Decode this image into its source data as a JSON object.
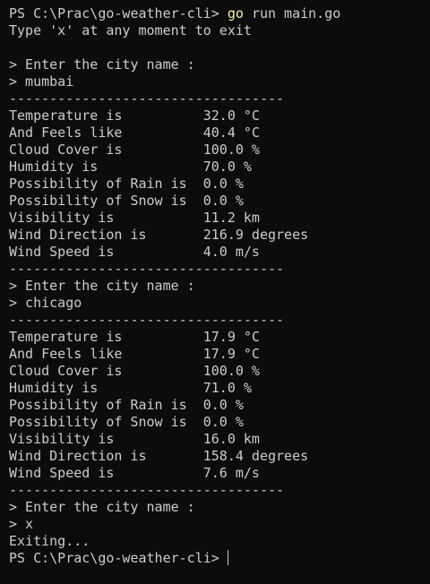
{
  "header": {
    "prompt": "PS C:\\Prac\\go-weather-cli>",
    "command": "go",
    "args": "run main.go",
    "notice": "Type 'x' at any moment to exit"
  },
  "sessions": [
    {
      "ask": "> Enter the city name :",
      "input": "> mumbai",
      "divider": "----------------------------------",
      "rows": [
        {
          "label": "Temperature is",
          "value": "32.0 °C"
        },
        {
          "label": "And Feels like",
          "value": "40.4 °C"
        },
        {
          "label": "Cloud Cover is",
          "value": "100.0 %"
        },
        {
          "label": "Humidity is",
          "value": "70.0 %"
        },
        {
          "label": "Possibility of Rain is",
          "value": "0.0 %"
        },
        {
          "label": "Possibility of Snow is",
          "value": "0.0 %"
        },
        {
          "label": "Visibility is",
          "value": "11.2 km"
        },
        {
          "label": "Wind Direction is",
          "value": "216.9 degrees"
        },
        {
          "label": "Wind Speed is",
          "value": "4.0 m/s"
        }
      ],
      "end_divider": "----------------------------------"
    },
    {
      "ask": "> Enter the city name :",
      "input": "> chicago",
      "divider": "----------------------------------",
      "rows": [
        {
          "label": "Temperature is",
          "value": "17.9 °C"
        },
        {
          "label": "And Feels like",
          "value": "17.9 °C"
        },
        {
          "label": "Cloud Cover is",
          "value": "100.0 %"
        },
        {
          "label": "Humidity is",
          "value": "71.0 %"
        },
        {
          "label": "Possibility of Rain is",
          "value": "0.0 %"
        },
        {
          "label": "Possibility of Snow is",
          "value": "0.0 %"
        },
        {
          "label": "Visibility is",
          "value": "16.0 km"
        },
        {
          "label": "Wind Direction is",
          "value": "158.4 degrees"
        },
        {
          "label": "Wind Speed is",
          "value": "7.6 m/s"
        }
      ],
      "end_divider": "----------------------------------"
    }
  ],
  "footer": {
    "ask": "> Enter the city name :",
    "input": "> x",
    "exit": "Exiting...",
    "prompt": "PS C:\\Prac\\go-weather-cli>"
  }
}
